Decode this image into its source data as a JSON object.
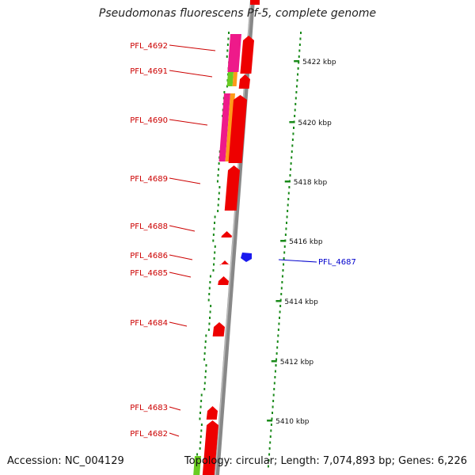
{
  "title": "Pseudomonas fluorescens Pf-5, complete genome",
  "footer": {
    "accession": "Accession: NC_004129",
    "topology": "Topology: circular; Length: 7,074,893 bp; Genes: 6,226"
  },
  "colors": {
    "gene_red": "#ee0000",
    "gene_blue": "#1a1aee",
    "label_red": "#cc0000",
    "label_blue": "#0000cc",
    "tick_green": "#1a8a1a",
    "magenta": "#ee1a8a",
    "orange": "#ff9a1a",
    "green": "#6acc22",
    "backbone": "#888888"
  },
  "kbp_labels": [
    "5422 kbp",
    "5420 kbp",
    "5418 kbp",
    "5416 kbp",
    "5414 kbp",
    "5412 kbp",
    "5410 kbp"
  ],
  "gene_labels": [
    {
      "text": "PFL_4692",
      "side": "left"
    },
    {
      "text": "PFL_4691",
      "side": "left"
    },
    {
      "text": "PFL_4690",
      "side": "left"
    },
    {
      "text": "PFL_4689",
      "side": "left"
    },
    {
      "text": "PFL_4688",
      "side": "left"
    },
    {
      "text": "PFL_4686",
      "side": "left"
    },
    {
      "text": "PFL_4685",
      "side": "left"
    },
    {
      "text": "PFL_4684",
      "side": "left"
    },
    {
      "text": "PFL_4683",
      "side": "left"
    },
    {
      "text": "PFL_4682",
      "side": "left"
    },
    {
      "text": "PFL_4687",
      "side": "right"
    }
  ]
}
